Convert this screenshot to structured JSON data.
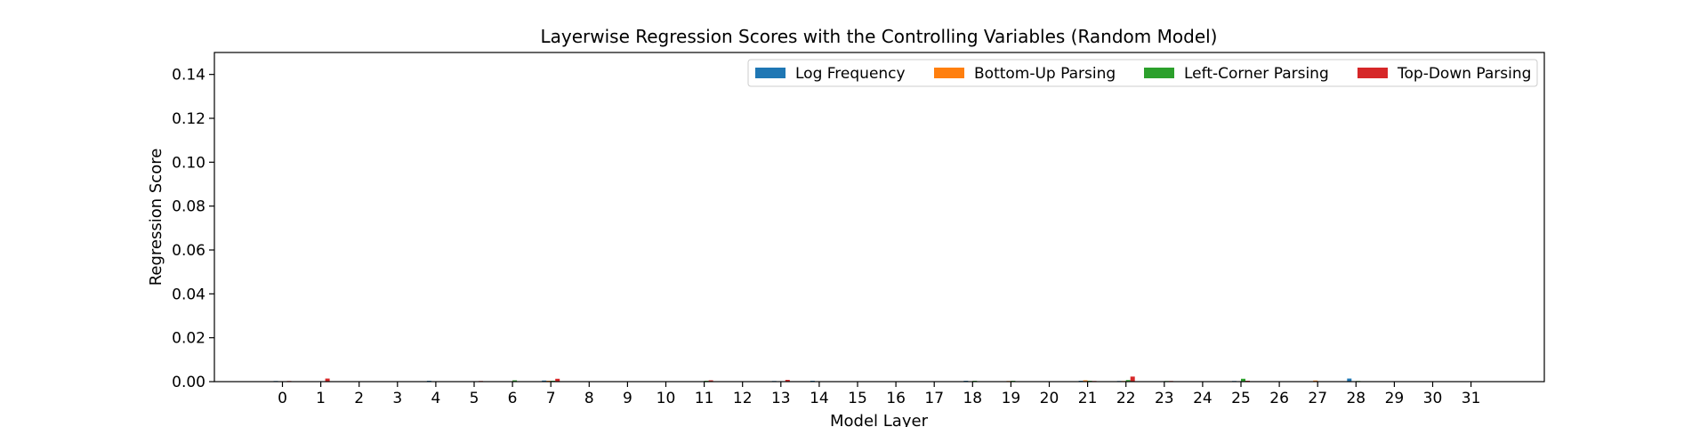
{
  "chart_data": {
    "type": "bar",
    "title": "Layerwise Regression Scores with the Controlling Variables (Random Model)",
    "xlabel": "Model Layer",
    "ylabel": "Regression Score",
    "ylim": [
      0,
      0.15
    ],
    "yticks": [
      0.0,
      0.02,
      0.04,
      0.06,
      0.08,
      0.1,
      0.12,
      0.14
    ],
    "ytick_labels": [
      "0.00",
      "0.02",
      "0.04",
      "0.06",
      "0.08",
      "0.10",
      "0.12",
      "0.14"
    ],
    "categories": [
      "0",
      "1",
      "2",
      "3",
      "4",
      "5",
      "6",
      "7",
      "8",
      "9",
      "10",
      "11",
      "12",
      "13",
      "14",
      "15",
      "16",
      "17",
      "18",
      "19",
      "20",
      "21",
      "22",
      "23",
      "24",
      "25",
      "26",
      "27",
      "28",
      "29",
      "30",
      "31"
    ],
    "legend_position": "upper-right",
    "grid": false,
    "series": [
      {
        "name": "Log Frequency",
        "color": "#1f77b4",
        "values": [
          0.0003,
          0.0002,
          0.0001,
          0.0001,
          0.0004,
          0.0002,
          0.0001,
          0.0005,
          0.0001,
          0.0001,
          0.0001,
          0.0002,
          0.0001,
          0.0003,
          0.0004,
          0.0001,
          0.0001,
          0.0001,
          0.0004,
          0.0002,
          0.0001,
          0.0004,
          0.0003,
          0.0002,
          0.0001,
          0.0003,
          0.0001,
          0.0001,
          0.0014,
          0.0001,
          0.0001,
          0.0001
        ]
      },
      {
        "name": "Bottom-Up Parsing",
        "color": "#ff7f0e",
        "values": [
          0.0001,
          0.0001,
          0.0001,
          0.0001,
          0.0001,
          0.0001,
          0.0002,
          0.0004,
          0.0001,
          0.0001,
          0.0001,
          0.0001,
          0.0001,
          0.0002,
          0.0001,
          0.0001,
          0.0001,
          0.0001,
          0.0001,
          0.0003,
          0.0001,
          0.0006,
          0.0003,
          0.0002,
          0.0001,
          0.0002,
          0.0001,
          0.0005,
          0.0001,
          0.0001,
          0.0001,
          0.0001
        ]
      },
      {
        "name": "Left-Corner Parsing",
        "color": "#2ca02c",
        "values": [
          0.0001,
          0.0001,
          0.0001,
          0.0001,
          0.0001,
          0.0001,
          0.0006,
          0.0004,
          0.0001,
          0.0001,
          0.0001,
          0.0004,
          0.0001,
          0.0002,
          0.0002,
          0.0001,
          0.0001,
          0.0001,
          0.0004,
          0.0004,
          0.0001,
          0.0004,
          0.0007,
          0.0003,
          0.0001,
          0.0013,
          0.0001,
          0.0002,
          0.0003,
          0.0001,
          0.0001,
          0.0001
        ]
      },
      {
        "name": "Top-Down Parsing",
        "color": "#d62728",
        "values": [
          0.0003,
          0.0014,
          0.0001,
          0.0002,
          0.0002,
          0.0003,
          0.0002,
          0.0013,
          0.0001,
          0.0001,
          0.0001,
          0.0006,
          0.0001,
          0.0008,
          0.0001,
          0.0001,
          0.0001,
          0.0001,
          0.0001,
          0.0001,
          0.0001,
          0.0003,
          0.0023,
          0.0003,
          0.0001,
          0.0004,
          0.0001,
          0.0001,
          0.0001,
          0.0001,
          0.0001,
          0.0001
        ]
      }
    ]
  }
}
